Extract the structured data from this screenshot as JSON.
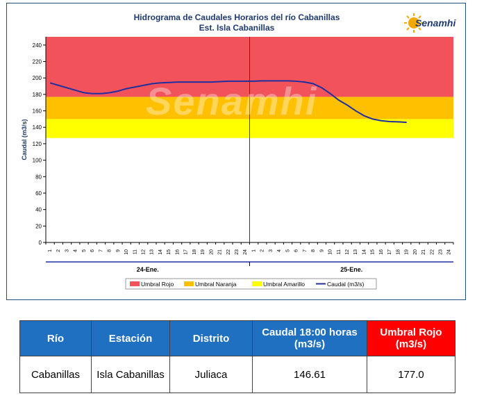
{
  "chart_data": {
    "type": "line",
    "title": "Hidrograma de Caudales Horarios del río Cabanillas",
    "subtitle": "Est. Isla Cabanillas",
    "ylabel": "Caudal   (m3/s)",
    "ylim": [
      0,
      250
    ],
    "yticks": [
      0,
      20,
      40,
      60,
      80,
      100,
      120,
      140,
      160,
      180,
      200,
      220,
      240
    ],
    "x_hour_labels": [
      "1",
      "2",
      "3",
      "4",
      "5",
      "6",
      "7",
      "8",
      "9",
      "10",
      "11",
      "12",
      "13",
      "14",
      "15",
      "16",
      "17",
      "18",
      "19",
      "20",
      "21",
      "22",
      "23",
      "24",
      "1",
      "2",
      "3",
      "4",
      "5",
      "6",
      "7",
      "8",
      "9",
      "10",
      "11",
      "12",
      "13",
      "14",
      "15",
      "16",
      "17",
      "18",
      "19",
      "20",
      "21",
      "22",
      "23",
      "24"
    ],
    "day_labels": [
      "24-Ene.",
      "25-Ene."
    ],
    "bands": [
      {
        "name": "Umbral Rojo",
        "from": 177,
        "to": 250,
        "color": "#f2535a"
      },
      {
        "name": "Umbral Naranja",
        "from": 150,
        "to": 177,
        "color": "#ffc000"
      },
      {
        "name": "Umbral Amarillo",
        "from": 127,
        "to": 150,
        "color": "#ffff00"
      }
    ],
    "series": [
      {
        "name": "Caudal  (m3/s)",
        "color": "#1f2fa0",
        "x": [
          1,
          2,
          3,
          4,
          5,
          6,
          7,
          8,
          9,
          10,
          11,
          12,
          13,
          14,
          15,
          16,
          17,
          18,
          19,
          20,
          21,
          22,
          23,
          24,
          25,
          26,
          27,
          28,
          29,
          30,
          31,
          32,
          33,
          34,
          35,
          36,
          37,
          38,
          39,
          40,
          41,
          42,
          43
        ],
        "values": [
          194,
          191,
          188,
          185,
          182,
          181,
          181,
          182,
          184,
          187,
          189,
          191,
          193,
          194,
          194.5,
          195,
          195,
          195,
          195,
          195,
          195.5,
          196,
          196,
          196,
          196,
          196.5,
          196.5,
          196.5,
          196.5,
          196,
          195,
          193,
          188,
          181,
          173,
          167,
          160,
          154,
          150,
          148,
          147,
          146.61,
          146
        ]
      }
    ],
    "legend_position": "bottom",
    "grid": false
  },
  "legend": [
    {
      "label": "Umbral Rojo",
      "color": "#f2535a"
    },
    {
      "label": "Umbral Naranja",
      "color": "#ffc000"
    },
    {
      "label": "Umbral Amarillo",
      "color": "#ffff00"
    },
    {
      "label": "Caudal  (m3/s)",
      "color": "#1f2fa0"
    }
  ],
  "logo": {
    "text": "Senamhi"
  },
  "watermark": "Senamhi",
  "table": {
    "headers": [
      "Río",
      "Estación",
      "Distrito",
      "Caudal  18:00 horas (m3/s)",
      "Umbral Rojo (m3/s)"
    ],
    "row": [
      "Cabanillas",
      "Isla Cabanillas",
      "Juliaca",
      "146.61",
      "177.0"
    ]
  }
}
